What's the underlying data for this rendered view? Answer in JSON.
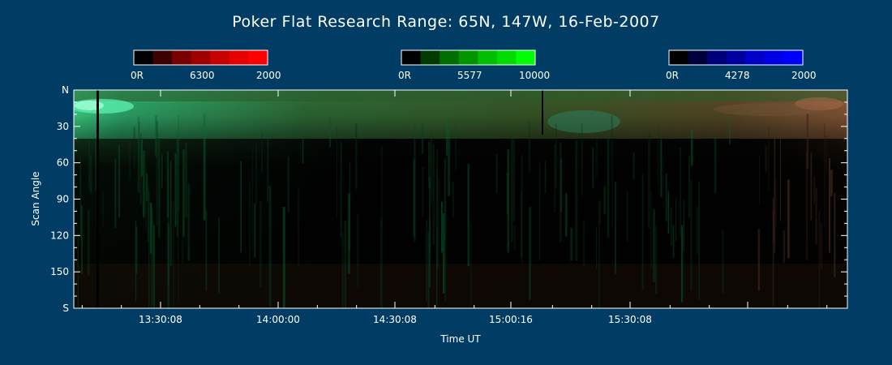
{
  "chart_data": {
    "type": "heatmap",
    "title": "Poker Flat Research Range: 65N, 147W, 16-Feb-2007",
    "xlabel": "Time UT",
    "ylabel": "Scan Angle",
    "x_ticks": [
      "13:30:08",
      "14:00:00",
      "14:30:08",
      "15:00:16",
      "15:30:08"
    ],
    "y_ticks": [
      "N",
      "30",
      "60",
      "90",
      "120",
      "150",
      "S"
    ],
    "y_range": [
      0,
      180
    ],
    "colorbars": [
      {
        "name": "6300",
        "min_label": "0R",
        "max_label": "2000",
        "color": "#ff0000",
        "steps": [
          "#000000",
          "#3c0000",
          "#780000",
          "#a00000",
          "#c80000",
          "#e60000",
          "#ff0000"
        ]
      },
      {
        "name": "5577",
        "min_label": "0R",
        "max_label": "10000",
        "color": "#00ff00",
        "steps": [
          "#000000",
          "#003c00",
          "#006e00",
          "#009600",
          "#00be00",
          "#00dc00",
          "#00ff00"
        ]
      },
      {
        "name": "4278",
        "min_label": "0R",
        "max_label": "2000",
        "color": "#0000ff",
        "steps": [
          "#000000",
          "#00003c",
          "#000078",
          "#0000a0",
          "#0000c8",
          "#0000e6",
          "#0000ff"
        ]
      }
    ]
  }
}
